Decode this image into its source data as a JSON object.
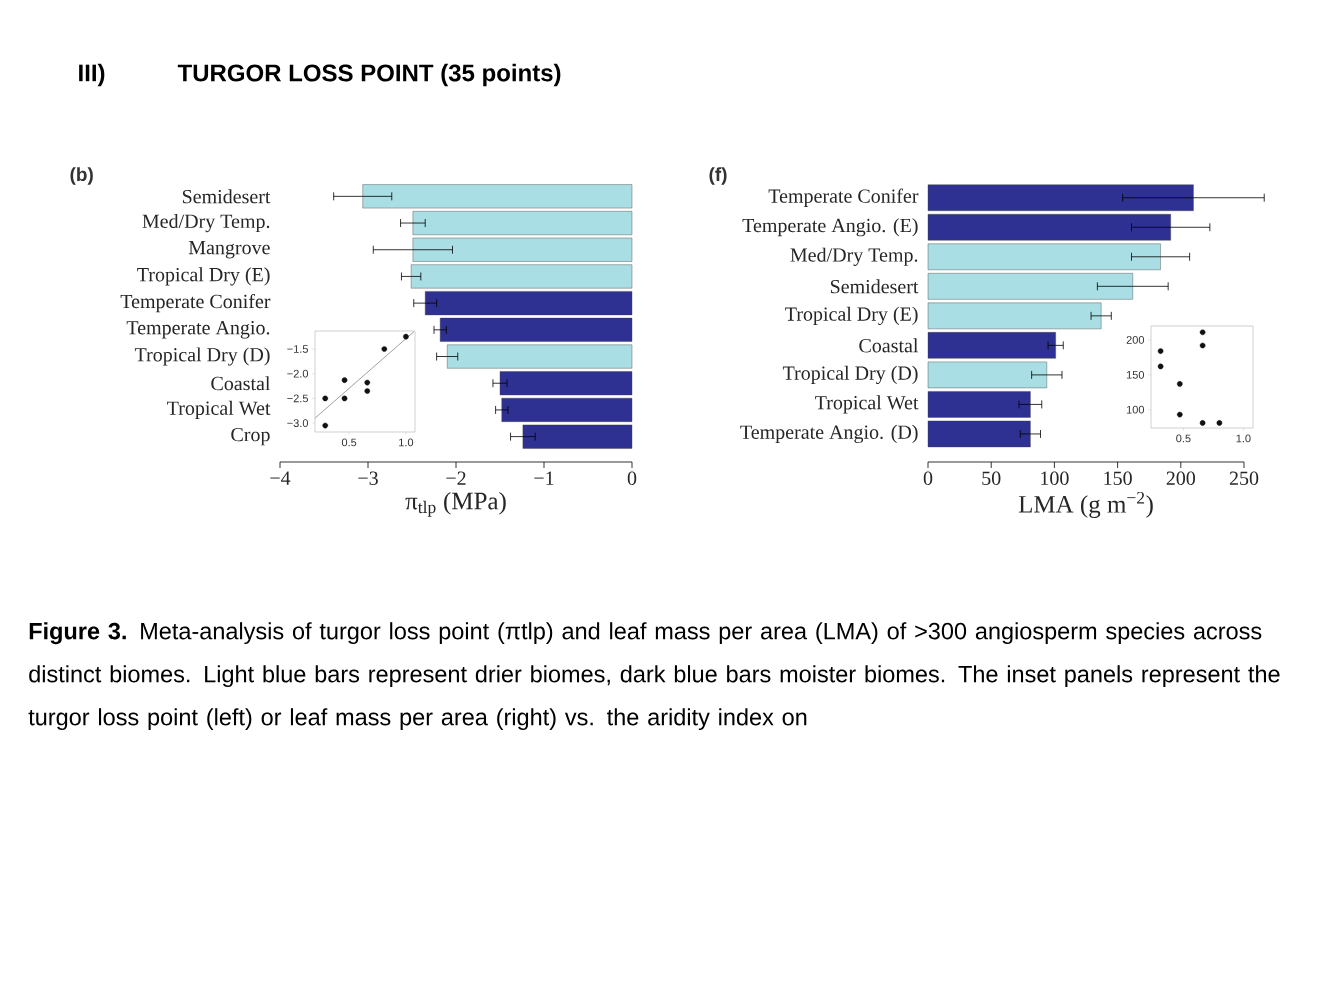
{
  "chart_data": [
    {
      "type": "bar",
      "orientation": "horizontal",
      "title": "(b)",
      "xlabel": "π$_{tlp}$ (MPa)",
      "annotations": [
        "III)",
        "TURGOR LOSS POINT  (35 points)",
        "**Figure 3.** Meta-analysis of turgor loss point (πtlp) and leaf mass per area (LMA) of >300 angiosperm species across distinct biomes. Light blue bars represent drier biomes, dark blue bars moister biomes. The inset panels represent the turgor loss point (left) or leaf mass per area (right) vs. the aridity index on"
      ],
      "categories": [
        "Semidesert",
        "Med/Dry Temp.",
        "Mangrove",
        "Tropical Dry (E)",
        "Temperate Conifer",
        "Temperate Angio.",
        "Tropical Dry (D)",
        "Coastal",
        "Tropical Wet",
        "Crop"
      ],
      "values": [
        -3.06,
        -2.49,
        -2.49,
        -2.51,
        -2.35,
        -2.18,
        -2.1,
        -1.5,
        -1.48,
        -1.24
      ],
      "errors": [
        0.33,
        0.14,
        0.45,
        0.11,
        0.13,
        0.07,
        0.12,
        0.08,
        0.07,
        0.14
      ],
      "colors": [
        "#a9dfe4",
        "#a9dfe4",
        "#a9dfe4",
        "#a9dfe4",
        "#2e3192",
        "#2e3192",
        "#a9dfe4",
        "#2e3192",
        "#2e3192",
        "#2e3192"
      ],
      "xlim": [
        -4,
        0
      ],
      "xticks": [
        {
          "value": -4,
          "label": "−4"
        },
        {
          "value": -3,
          "label": "−3"
        },
        {
          "value": -2,
          "label": "−2"
        },
        {
          "value": -1,
          "label": "−1"
        },
        0
      ]
    },
    {
      "type": "scatter",
      "xlim": [
        0.2,
        1.08
      ],
      "ylim": [
        -3.18,
        -1.135
      ],
      "xticks": [
        0.5,
        {
          "value": 1.0,
          "label": "1.0"
        }
      ],
      "yticks": [
        {
          "value": -1.5,
          "label": "−1.5"
        },
        {
          "value": -2.0,
          "label": "−2.0"
        },
        {
          "value": -2.5,
          "label": "−2.5"
        },
        {
          "value": -3.0,
          "label": "−3.0"
        }
      ],
      "series": [
        {
          "type": "scatter",
          "marker": "circle",
          "color": "#111111",
          "x": [
            0.29,
            0.29,
            0.46,
            0.46,
            0.66,
            0.66,
            0.81,
            1.0
          ],
          "values": [
            -2.5,
            -3.05,
            -2.13,
            -2.5,
            -2.18,
            -2.35,
            -1.5,
            -1.25
          ]
        },
        {
          "type": "line",
          "marker": "none",
          "color": "#888888",
          "x": [
            0.2,
            1.07
          ],
          "values": [
            -2.9,
            -1.15
          ]
        }
      ]
    },
    {
      "type": "bar",
      "orientation": "horizontal",
      "title": "(f)",
      "xlabel": "LMA (g m$^{−2}$)",
      "categories": [
        "Temperate Conifer",
        "Temperate Angio. (E)",
        "Med/Dry Temp.",
        "Semidesert",
        "Tropical Dry (E)",
        "Coastal",
        "Tropical Dry (D)",
        "Tropical Wet",
        "Temperate Angio. (D)"
      ],
      "values": [
        210,
        192,
        184,
        162,
        137,
        101,
        94,
        81,
        81
      ],
      "errors": [
        56,
        31,
        23,
        28,
        8,
        6,
        12,
        9,
        8
      ],
      "colors": [
        "#2e3192",
        "#2e3192",
        "#a9dfe4",
        "#a9dfe4",
        "#a9dfe4",
        "#2e3192",
        "#a9dfe4",
        "#2e3192",
        "#2e3192"
      ],
      "xlim": [
        0,
        250
      ],
      "xticks": [
        0,
        50,
        100,
        150,
        200,
        250
      ]
    },
    {
      "type": "scatter",
      "xlim": [
        0.23,
        1.08
      ],
      "ylim": [
        73.8,
        220
      ],
      "xticks": [
        0.5,
        {
          "value": 1.0,
          "label": "1.0"
        }
      ],
      "yticks": [
        100,
        150,
        200
      ],
      "series": [
        {
          "type": "scatter",
          "marker": "circle",
          "color": "#111111",
          "x": [
            0.31,
            0.31,
            0.47,
            0.47,
            0.66,
            0.66,
            0.66,
            0.8
          ],
          "values": [
            184,
            162,
            137,
            93,
            211,
            192,
            81,
            81
          ]
        }
      ]
    }
  ]
}
